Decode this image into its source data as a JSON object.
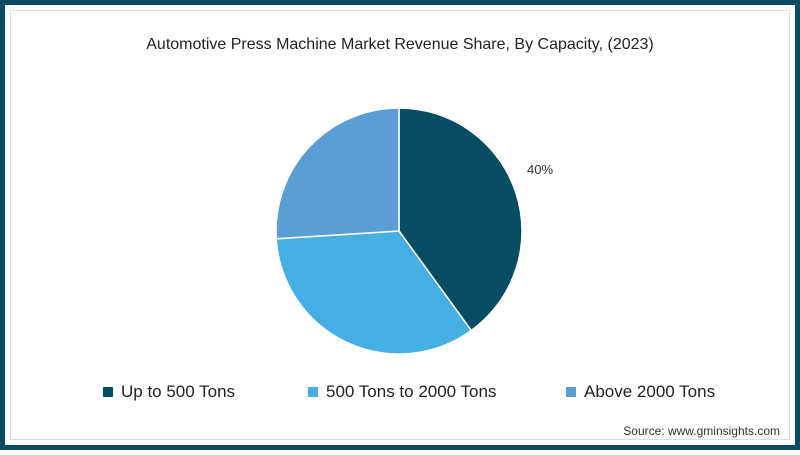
{
  "title": "Automotive Press Machine Market Revenue Share, By Capacity, (2023)",
  "colors": {
    "frame": "#0c4a63",
    "up_to_500": "#064d63",
    "500_to_2000": "#45aee2",
    "above_2000": "#5b9ed6"
  },
  "slice_label": "40%",
  "legend": [
    {
      "label": "Up to 500 Tons",
      "color": "#064d63"
    },
    {
      "label": "500 Tons to 2000 Tons",
      "color": "#45aee2"
    },
    {
      "label": "Above 2000 Tons",
      "color": "#5b9ed6"
    }
  ],
  "source": "Source: www.gminsights.com",
  "chart_data": {
    "type": "pie",
    "title": "Automotive Press Machine Market Revenue Share, By Capacity, (2023)",
    "categories": [
      "Up to 500 Tons",
      "500 Tons to 2000 Tons",
      "Above 2000 Tons"
    ],
    "values": [
      40,
      34,
      26
    ],
    "unit": "%",
    "labeled_values": {
      "Up to 500 Tons": "40%"
    },
    "start_angle": "12 o'clock, clockwise",
    "legend_position": "bottom",
    "source": "Source: www.gminsights.com"
  }
}
